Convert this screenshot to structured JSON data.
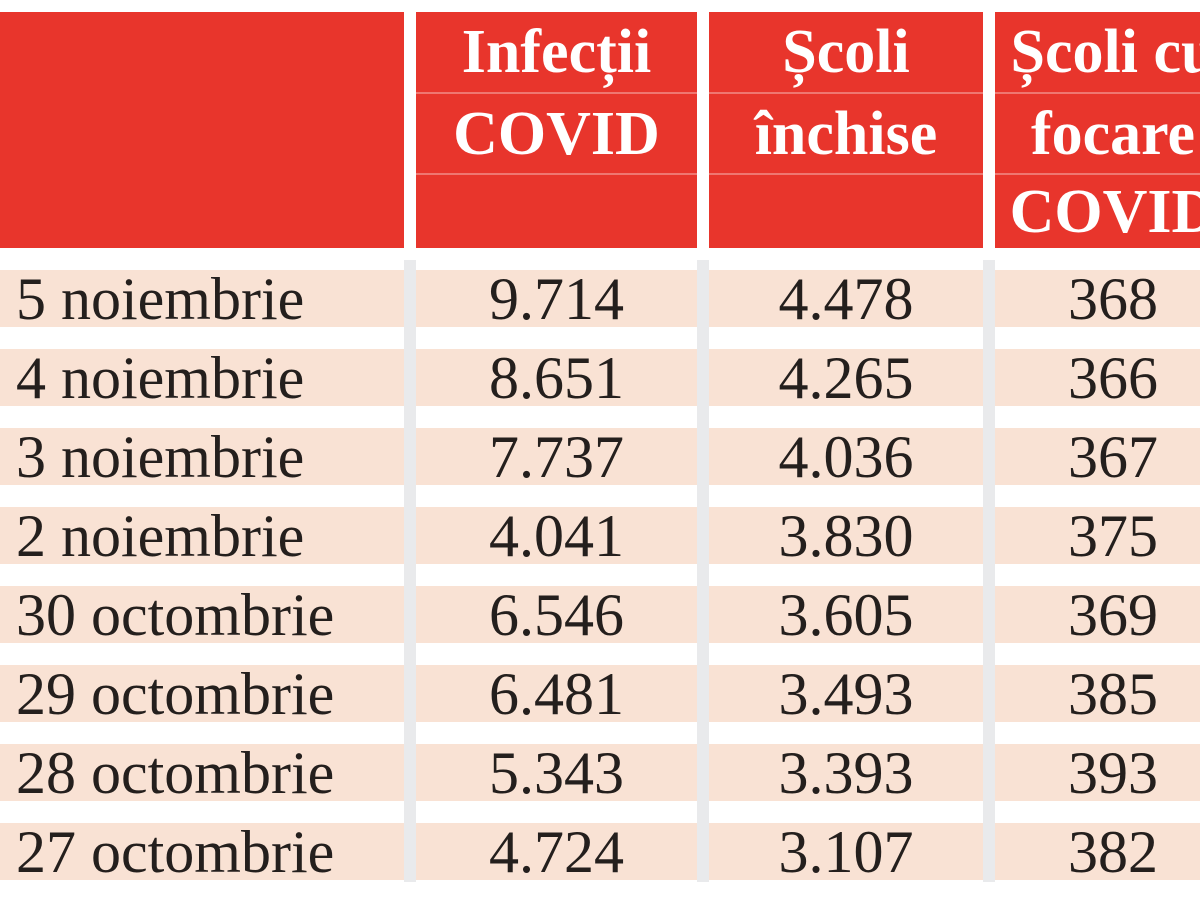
{
  "header": {
    "col2": {
      "line1": "Infecții",
      "line2": "COVID"
    },
    "col3": {
      "line1": "Școli",
      "line2": "închise"
    },
    "col4": {
      "line1": "Școli cu",
      "line2": "focare",
      "line3": "COVID"
    }
  },
  "rows": [
    {
      "date": "5 noiembrie",
      "infections": "9.714",
      "schools_closed": "4.478",
      "schools_outbreaks": "368"
    },
    {
      "date": "4 noiembrie",
      "infections": "8.651",
      "schools_closed": "4.265",
      "schools_outbreaks": "366"
    },
    {
      "date": "3 noiembrie",
      "infections": "7.737",
      "schools_closed": "4.036",
      "schools_outbreaks": "367"
    },
    {
      "date": "2 noiembrie",
      "infections": "4.041",
      "schools_closed": "3.830",
      "schools_outbreaks": "375"
    },
    {
      "date": "30 octombrie",
      "infections": "6.546",
      "schools_closed": "3.605",
      "schools_outbreaks": "369"
    },
    {
      "date": "29 octombrie",
      "infections": "6.481",
      "schools_closed": "3.493",
      "schools_outbreaks": "385"
    },
    {
      "date": "28 octombrie",
      "infections": "5.343",
      "schools_closed": "3.393",
      "schools_outbreaks": "393"
    },
    {
      "date": "27 octombrie",
      "infections": "4.724",
      "schools_closed": "3.107",
      "schools_outbreaks": "382"
    }
  ],
  "colors": {
    "header_red": "#e8352c",
    "row_peach": "#f9e2d4",
    "text_dark": "#241f1d",
    "column_divider": "#e9eaec"
  },
  "chart_data": {
    "type": "table",
    "title": "",
    "columns": [
      "",
      "Infecții COVID",
      "Școli închise",
      "Școli cu focare COVID"
    ],
    "rows": [
      [
        "5 noiembrie",
        9714,
        4478,
        368
      ],
      [
        "4 noiembrie",
        8651,
        4265,
        366
      ],
      [
        "3 noiembrie",
        7737,
        4036,
        367
      ],
      [
        "2 noiembrie",
        4041,
        3830,
        375
      ],
      [
        "30 octombrie",
        6546,
        3605,
        369
      ],
      [
        "29 octombrie",
        6481,
        3493,
        385
      ],
      [
        "28 octombrie",
        5343,
        3393,
        393
      ],
      [
        "27 octombrie",
        4724,
        3107,
        382
      ]
    ],
    "layout_hints": {
      "header_background": "#e8352c",
      "row_background": "#f9e2d4",
      "number_format": "thousands separated by dot",
      "last_column_clipped_at_right_edge": true
    }
  }
}
